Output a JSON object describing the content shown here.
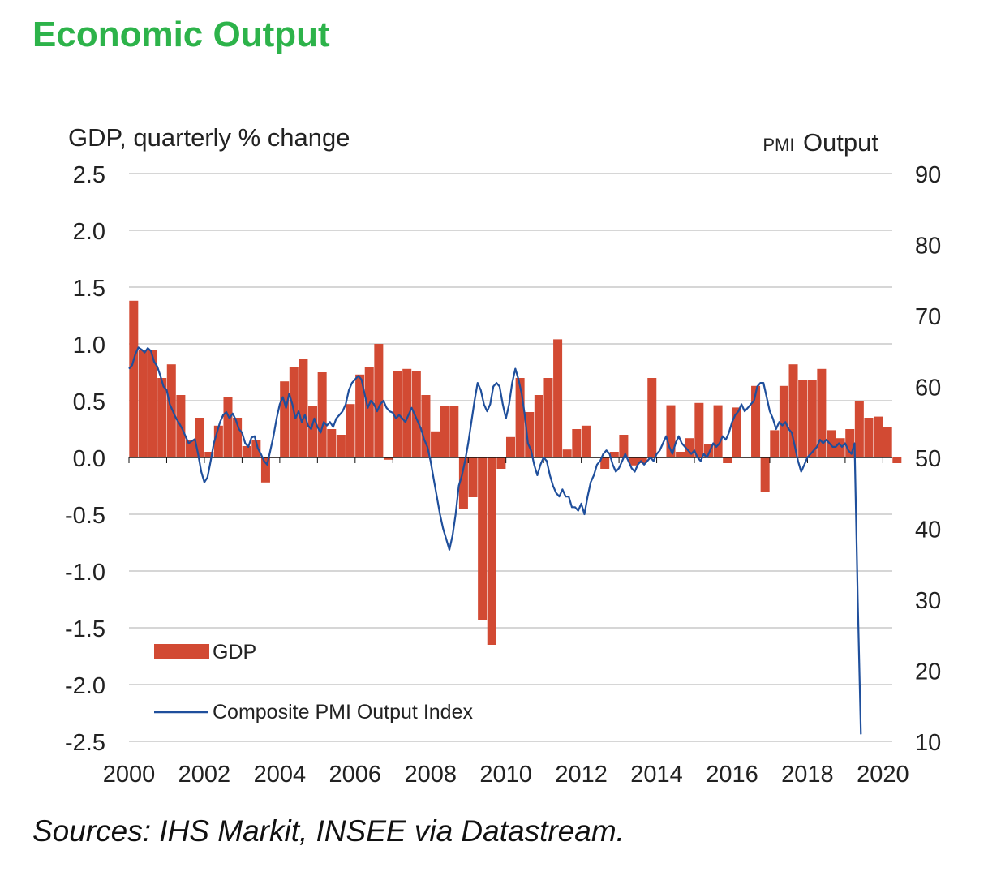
{
  "page": {
    "title": "Economic Output",
    "source": "Sources: IHS Markit, INSEE via Datastream."
  },
  "colors": {
    "title": "#2db34a",
    "bar": "#d24a33",
    "line": "#1f4f9c",
    "grid": "#bdbdbd"
  },
  "chart_data": {
    "type": "bar+line",
    "title": "",
    "left_axis_label": "GDP, quarterly % change",
    "right_axis_label_prefix": "PMI",
    "right_axis_label": "Output",
    "left_ylim": [
      -2.5,
      2.5
    ],
    "left_ticks": [
      2.5,
      2.0,
      1.5,
      1.0,
      0.5,
      0.0,
      -0.5,
      -1.0,
      -1.5,
      -2.0,
      -2.5
    ],
    "left_tick_labels": [
      "2.5",
      "2.0",
      "1.5",
      "1.0",
      "0.5",
      "0.0",
      "-0.5",
      "-1.0",
      "-1.5",
      "-2.0",
      "-2.5"
    ],
    "right_ylim": [
      10,
      90
    ],
    "right_ticks": [
      90,
      80,
      70,
      60,
      50,
      40,
      30,
      20,
      10
    ],
    "right_tick_labels": [
      "90",
      "80",
      "70",
      "60",
      "50",
      "40",
      "30",
      "20",
      "10"
    ],
    "x_range": [
      2000,
      2020.25
    ],
    "x_ticks": [
      2000,
      2002,
      2004,
      2006,
      2008,
      2010,
      2012,
      2014,
      2016,
      2018,
      2020
    ],
    "x_tick_labels": [
      "2000",
      "2002",
      "2004",
      "2006",
      "2008",
      "2010",
      "2012",
      "2014",
      "2016",
      "2018",
      "2020"
    ],
    "grid": true,
    "legend": {
      "position": "bottom-left",
      "entries": [
        {
          "label": "GDP",
          "kind": "bar"
        },
        {
          "label": "Composite PMI Output Index",
          "kind": "line"
        }
      ]
    },
    "series": [
      {
        "name": "GDP",
        "kind": "bar",
        "axis": "left",
        "start": 2000.0,
        "step": 0.25,
        "values": [
          1.38,
          0.95,
          0.95,
          0.7,
          0.82,
          0.55,
          0.15,
          0.35,
          0.05,
          0.28,
          0.53,
          0.35,
          0.1,
          0.15,
          -0.22,
          0.0,
          0.67,
          0.8,
          0.87,
          0.45,
          0.75,
          0.25,
          0.2,
          0.47,
          0.73,
          0.8,
          1.0,
          -0.02,
          0.76,
          0.78,
          0.76,
          0.55,
          0.23,
          0.45,
          0.45,
          -0.45,
          -0.35,
          -1.43,
          -1.65,
          -0.1,
          0.18,
          0.7,
          0.4,
          0.55,
          0.7,
          1.04,
          0.07,
          0.25,
          0.28,
          0.0,
          -0.1,
          0.05,
          0.2,
          -0.07,
          -0.05,
          0.7,
          0.0,
          0.46,
          0.05,
          0.17,
          0.48,
          0.12,
          0.46,
          -0.05,
          0.44,
          0.0,
          0.63,
          -0.3,
          0.24,
          0.63,
          0.82,
          0.68,
          0.68,
          0.78,
          0.24,
          0.17,
          0.25,
          0.5,
          0.35,
          0.36,
          0.27,
          -0.05
        ]
      },
      {
        "name": "Composite PMI Output Index",
        "kind": "line",
        "axis": "right",
        "start": 2000.0,
        "step": 0.0833333,
        "values": [
          62.5,
          63.0,
          64.5,
          65.5,
          65.2,
          64.8,
          65.4,
          65.0,
          63.5,
          62.8,
          61.5,
          60.0,
          59.5,
          57.5,
          56.5,
          55.5,
          54.8,
          54.0,
          53.0,
          52.0,
          52.3,
          52.6,
          50.5,
          48.0,
          46.5,
          47.2,
          49.5,
          52.0,
          53.5,
          55.0,
          56.0,
          56.4,
          55.5,
          56.2,
          55.3,
          54.0,
          53.5,
          52.0,
          51.5,
          52.8,
          53.0,
          51.3,
          50.5,
          49.5,
          49.0,
          51.0,
          53.0,
          55.5,
          57.5,
          58.5,
          57.0,
          59.0,
          57.5,
          55.5,
          56.5,
          55.0,
          56.0,
          54.5,
          54.0,
          55.5,
          54.3,
          53.5,
          55.0,
          54.5,
          55.0,
          54.3,
          55.5,
          56.0,
          56.5,
          57.5,
          59.5,
          60.5,
          61.0,
          61.5,
          61.0,
          59.0,
          57.0,
          58.0,
          57.5,
          56.5,
          57.5,
          58.0,
          57.0,
          56.5,
          56.3,
          55.5,
          56.0,
          55.5,
          55.0,
          56.0,
          57.0,
          56.0,
          55.0,
          54.0,
          52.5,
          51.5,
          49.5,
          47.0,
          44.5,
          42.0,
          40.0,
          38.5,
          37.0,
          39.0,
          42.0,
          46.0,
          47.5,
          49.5,
          52.0,
          55.0,
          58.0,
          60.5,
          59.5,
          57.5,
          56.5,
          57.5,
          60.0,
          60.5,
          60.0,
          57.5,
          55.5,
          57.5,
          60.5,
          62.5,
          61.0,
          59.0,
          56.0,
          52.0,
          51.0,
          49.0,
          47.5,
          49.0,
          50.0,
          49.5,
          47.5,
          46.0,
          45.0,
          44.5,
          45.5,
          44.5,
          44.5,
          43.0,
          43.0,
          42.5,
          43.5,
          42.0,
          44.5,
          46.5,
          47.5,
          49.0,
          49.5,
          50.5,
          51.0,
          50.5,
          49.0,
          48.0,
          48.5,
          49.5,
          50.5,
          49.5,
          48.5,
          48.0,
          49.0,
          49.5,
          49.0,
          49.5,
          50.0,
          49.5,
          50.5,
          51.0,
          52.0,
          53.0,
          51.5,
          50.5,
          52.0,
          53.0,
          52.0,
          51.5,
          51.0,
          50.5,
          51.0,
          50.0,
          49.5,
          50.5,
          50.0,
          51.0,
          52.0,
          51.5,
          52.0,
          53.0,
          52.5,
          53.5,
          55.0,
          56.0,
          56.5,
          57.5,
          56.5,
          57.0,
          57.5,
          58.0,
          60.0,
          60.5,
          60.5,
          58.5,
          56.5,
          55.5,
          54.0,
          55.0,
          54.5,
          55.0,
          54.0,
          53.5,
          51.5,
          49.5,
          48.0,
          49.0,
          50.0,
          50.5,
          51.0,
          51.5,
          52.5,
          52.0,
          52.5,
          52.0,
          51.5,
          51.5,
          52.0,
          51.5,
          52.0,
          51.0,
          50.5,
          52.0,
          30.0,
          11.0
        ]
      }
    ]
  }
}
